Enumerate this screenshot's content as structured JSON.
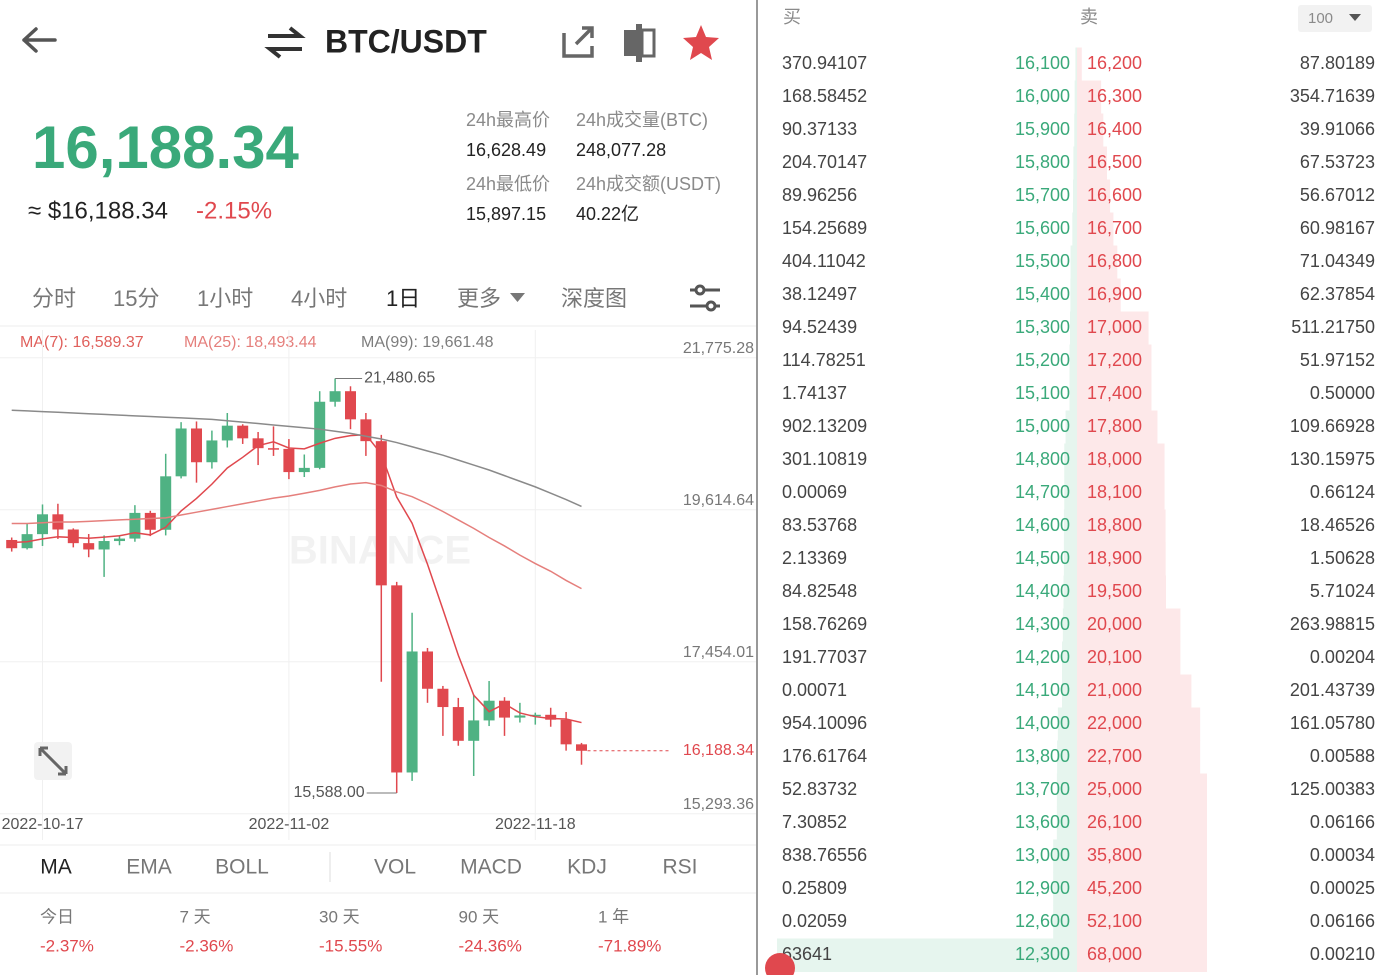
{
  "header": {
    "pair": "BTC/USDT"
  },
  "ticker": {
    "price": "16,188.34",
    "approx": "≈ $16,188.34",
    "change": "-2.15%",
    "stats": [
      {
        "label": "24h最高价",
        "value": "16,628.49"
      },
      {
        "label": "24h成交量(BTC)",
        "value": "248,077.28"
      },
      {
        "label": "24h最低价",
        "value": "15,897.15"
      },
      {
        "label": "24h成交额(USDT)",
        "value": "40.22亿"
      }
    ]
  },
  "intervals": [
    "分时",
    "15分",
    "1小时",
    "4小时",
    "1日",
    "更多",
    "深度图"
  ],
  "kline": {
    "type": "candlestick",
    "ma_legend": [
      {
        "label": "MA(7): 16,589.37",
        "color": "#e0605c"
      },
      {
        "label": "MA(25): 18,493.44",
        "color": "#e57f7c"
      },
      {
        "label": "MA(99): 19,661.48",
        "color": "#7d7d7d"
      }
    ],
    "watermark": "BINANCE",
    "categories": [
      null,
      null,
      "2022-10-17",
      null,
      null,
      null,
      null,
      null,
      null,
      null,
      null,
      null,
      null,
      null,
      null,
      null,
      null,
      null,
      "2022-11-02",
      null,
      null,
      null,
      null,
      null,
      null,
      null,
      null,
      null,
      null,
      null,
      null,
      null,
      null,
      null,
      "2022-11-18",
      null,
      null,
      null
    ],
    "open": [
      19185,
      19068,
      19268,
      19550,
      19334,
      19140,
      19050,
      19170,
      19205,
      19570,
      19330,
      20090,
      20770,
      20290,
      20600,
      20810,
      20630,
      20490,
      20480,
      20150,
      20210,
      21150,
      21300,
      20900,
      20590,
      18540,
      15880,
      17600,
      17070,
      16810,
      16330,
      16620,
      16900,
      16660,
      16690,
      16700,
      16630,
      16280
    ],
    "high": [
      19220,
      19420,
      19690,
      19700,
      19350,
      19270,
      19250,
      19250,
      19680,
      19600,
      20410,
      20860,
      20870,
      20740,
      20990,
      20830,
      20720,
      20800,
      20620,
      20400,
      21300,
      21480.65,
      21370,
      20990,
      20680,
      18590,
      18150,
      17650,
      17110,
      16940,
      16990,
      17180,
      16950,
      16870,
      16730,
      16800,
      16740,
      16300
    ],
    "low": [
      19020,
      19050,
      19100,
      19200,
      19080,
      18940,
      18660,
      19110,
      19160,
      19240,
      19250,
      20060,
      20000,
      20200,
      20500,
      20550,
      20250,
      20380,
      20050,
      20080,
      20190,
      21080,
      20760,
      20380,
      17170,
      15588,
      15760,
      16870,
      16400,
      16260,
      15830,
      16540,
      16400,
      16590,
      16560,
      16530,
      16190,
      15990
    ],
    "close": [
      19068,
      19268,
      19550,
      19334,
      19140,
      19050,
      19170,
      19205,
      19570,
      19330,
      20090,
      20770,
      20290,
      20600,
      20810,
      20630,
      20490,
      20480,
      20150,
      20210,
      21150,
      21300,
      20900,
      20590,
      18540,
      15880,
      17600,
      17070,
      16810,
      16330,
      16620,
      16900,
      16660,
      16690,
      16700,
      16630,
      16280,
      16188.34
    ],
    "ma": [
      {
        "color": "#e0484e",
        "values": [
          19150,
          19160,
          19200,
          19230,
          19220,
          19210,
          19226,
          19245,
          19288,
          19257,
          19365,
          19598,
          19775,
          19979,
          20209,
          20360,
          20526,
          20581,
          20493,
          20481,
          20560,
          20630,
          20669,
          20683,
          20406,
          19796,
          19423,
          18840,
          18199,
          17546,
          16979,
          16744,
          16856,
          16726,
          16673,
          16647,
          16640,
          16589.37
        ]
      },
      {
        "color": "#e57f7c",
        "values": [
          19420,
          19420,
          19430,
          19440,
          19440,
          19450,
          19460,
          19470,
          19480,
          19490,
          19500,
          19540,
          19580,
          19620,
          19660,
          19700,
          19740,
          19780,
          19810,
          19850,
          19890,
          19940,
          19980,
          20000,
          19960,
          19870,
          19800,
          19700,
          19590,
          19470,
          19350,
          19220,
          19100,
          18970,
          18850,
          18740,
          18610,
          18493.44
        ]
      },
      {
        "color": "#8a8a8a",
        "values": [
          21030,
          21020,
          21010,
          21000,
          20990,
          20980,
          20970,
          20960,
          20950,
          20940,
          20930,
          20920,
          20910,
          20900,
          20880,
          20860,
          20840,
          20820,
          20800,
          20780,
          20760,
          20730,
          20700,
          20660,
          20620,
          20570,
          20510,
          20450,
          20390,
          20320,
          20250,
          20180,
          20100,
          20020,
          19940,
          19850,
          19760,
          19661.48
        ]
      }
    ],
    "ylim": [
      14920,
      22170
    ],
    "yticks": [
      {
        "value": 15293.36,
        "label": "15,293.36"
      },
      {
        "value": 17454.01,
        "label": "17,454.01"
      },
      {
        "value": 19614.64,
        "label": "19,614.64"
      },
      {
        "value": 21775.28,
        "label": "21,775.28"
      }
    ],
    "max_label": {
      "value": 21480.65,
      "label": "21,480.65"
    },
    "min_label": {
      "value": 15588,
      "label": "15,588.00"
    },
    "last_price": {
      "value": 16188.34,
      "label": "16,188.34"
    },
    "up_color": "#4fb283",
    "down_color": "#e0484e"
  },
  "indicators": [
    "MA",
    "EMA",
    "BOLL",
    "VOL",
    "MACD",
    "KDJ",
    "RSI"
  ],
  "performance": [
    {
      "label": "今日",
      "value": "-2.37%"
    },
    {
      "label": "7 天",
      "value": "-2.36%"
    },
    {
      "label": "30 天",
      "value": "-15.55%"
    },
    {
      "label": "90 天",
      "value": "-24.36%"
    },
    {
      "label": "1 年",
      "value": "-71.89%"
    }
  ],
  "order_book": {
    "buy_label": "买",
    "sell_label": "卖",
    "depth": "100",
    "rows": [
      [
        "370.94107",
        "16,100",
        "16,200",
        "87.80189"
      ],
      [
        "168.58452",
        "16,000",
        "16,300",
        "354.71639"
      ],
      [
        "90.37133",
        "15,900",
        "16,400",
        "39.91066"
      ],
      [
        "204.70147",
        "15,800",
        "16,500",
        "67.53723"
      ],
      [
        "89.96256",
        "15,700",
        "16,600",
        "56.67012"
      ],
      [
        "154.25689",
        "15,600",
        "16,700",
        "60.98167"
      ],
      [
        "404.11042",
        "15,500",
        "16,800",
        "71.04349"
      ],
      [
        "38.12497",
        "15,400",
        "16,900",
        "62.37854"
      ],
      [
        "94.52439",
        "15,300",
        "17,000",
        "511.21750"
      ],
      [
        "114.78251",
        "15,200",
        "17,200",
        "51.97152"
      ],
      [
        "1.74137",
        "15,100",
        "17,400",
        "0.50000"
      ],
      [
        "902.13209",
        "15,000",
        "17,800",
        "109.66928"
      ],
      [
        "301.10819",
        "14,800",
        "18,000",
        "130.15975"
      ],
      [
        "0.00069",
        "14,700",
        "18,100",
        "0.66124"
      ],
      [
        "83.53768",
        "14,600",
        "18,800",
        "18.46526"
      ],
      [
        "2.13369",
        "14,500",
        "18,900",
        "1.50628"
      ],
      [
        "84.82548",
        "14,400",
        "19,500",
        "5.71024"
      ],
      [
        "158.76269",
        "14,300",
        "20,000",
        "263.98815"
      ],
      [
        "191.77037",
        "14,200",
        "20,100",
        "0.00204"
      ],
      [
        "0.00071",
        "14,100",
        "21,000",
        "201.43739"
      ],
      [
        "954.10096",
        "14,000",
        "22,000",
        "161.05780"
      ],
      [
        "176.61764",
        "13,800",
        "22,700",
        "0.00588"
      ],
      [
        "52.83732",
        "13,700",
        "25,000",
        "125.00383"
      ],
      [
        "7.30852",
        "13,600",
        "26,100",
        "0.06166"
      ],
      [
        "838.76556",
        "13,000",
        "35,800",
        "0.00034"
      ],
      [
        "0.25809",
        "12,900",
        "45,200",
        "0.00025"
      ],
      [
        "0.02059",
        "12,600",
        "52,100",
        "0.06166"
      ],
      [
        "63641",
        "12,300",
        "68,000",
        "0.00210"
      ]
    ]
  }
}
